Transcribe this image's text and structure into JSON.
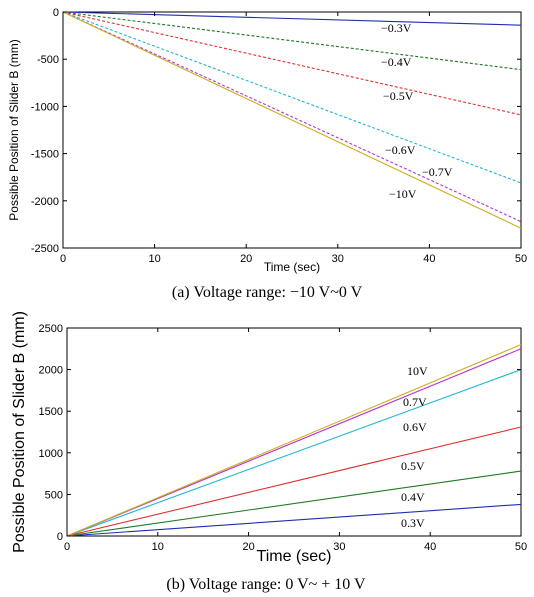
{
  "chart_data": [
    {
      "type": "line",
      "caption": "(a)   Voltage range:  −10 V~0 V",
      "xlabel": "Time (sec)",
      "ylabel": "Possible Position of Slider B (mm)",
      "xlim": [
        0,
        50
      ],
      "ylim": [
        -2500,
        0
      ],
      "xticks": [
        "0",
        "10",
        "20",
        "30",
        "40",
        "50"
      ],
      "yticks": [
        "0",
        "-500",
        "-1000",
        "-1500",
        "-2000",
        "-2500"
      ],
      "grid": false,
      "x": [
        0,
        50
      ],
      "series": [
        {
          "name": "−0.3V",
          "color": "#1f2fb0",
          "dash": "solid",
          "values": [
            0,
            -140
          ]
        },
        {
          "name": "−0.4V",
          "color": "#1f7a1f",
          "dash": "dashed",
          "values": [
            0,
            -610
          ]
        },
        {
          "name": "−0.5V",
          "color": "#e03030",
          "dash": "dashed",
          "values": [
            0,
            -1090
          ]
        },
        {
          "name": "−0.6V",
          "color": "#21b5d6",
          "dash": "dashed",
          "values": [
            0,
            -1810
          ]
        },
        {
          "name": "−0.7V",
          "color": "#bb33cc",
          "dash": "dashed",
          "values": [
            0,
            -2220
          ]
        },
        {
          "name": "−10V",
          "color": "#c9b020",
          "dash": "solid",
          "values": [
            0,
            -2290
          ]
        }
      ]
    },
    {
      "type": "line",
      "caption": "(b)   Voltage range: 0 V~ + 10 V",
      "xlabel": "Time (sec)",
      "ylabel": "Possible Position of Slider B (mm)",
      "xlim": [
        0,
        50
      ],
      "ylim": [
        0,
        2500
      ],
      "xticks": [
        "0",
        "10",
        "20",
        "30",
        "40",
        "50"
      ],
      "yticks": [
        "0",
        "500",
        "1000",
        "1500",
        "2000",
        "2500"
      ],
      "grid": false,
      "x": [
        0,
        50
      ],
      "series": [
        {
          "name": "0.3V",
          "color": "#1f2fb0",
          "dash": "solid",
          "values": [
            0,
            380
          ]
        },
        {
          "name": "0.4V",
          "color": "#1f7a1f",
          "dash": "solid",
          "values": [
            0,
            780
          ]
        },
        {
          "name": "0.5V",
          "color": "#e03030",
          "dash": "solid",
          "values": [
            0,
            1310
          ]
        },
        {
          "name": "0.6V",
          "color": "#21b5d6",
          "dash": "solid",
          "values": [
            0,
            2000
          ]
        },
        {
          "name": "0.7V",
          "color": "#bb33cc",
          "dash": "solid",
          "values": [
            0,
            2250
          ]
        },
        {
          "name": "10V",
          "color": "#c9b020",
          "dash": "solid",
          "values": [
            0,
            2300
          ]
        }
      ]
    }
  ]
}
